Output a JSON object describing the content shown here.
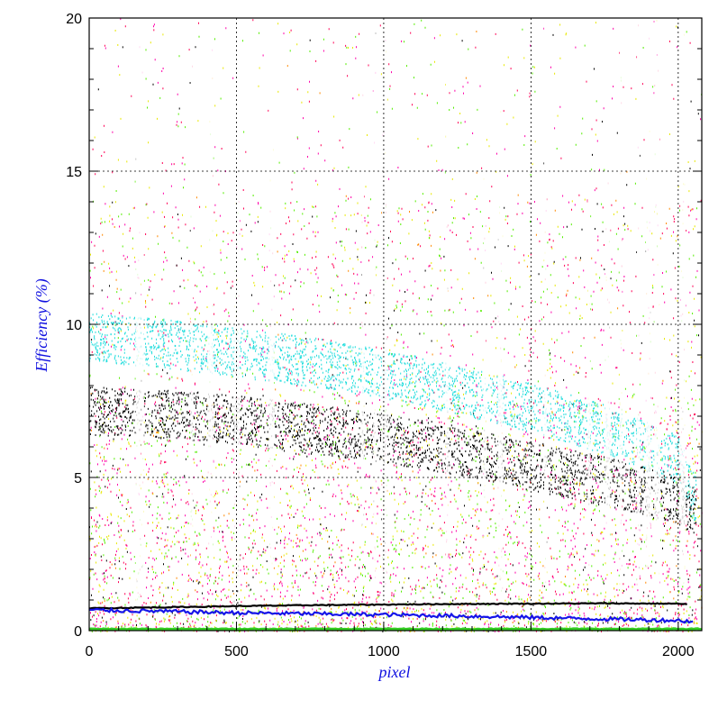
{
  "chart_data": {
    "type": "scatter",
    "title": "",
    "xlabel": "pixel",
    "ylabel": "Efficiency (%)",
    "xlim": [
      0,
      2080
    ],
    "ylim": [
      0,
      20
    ],
    "x_ticks": [
      0,
      500,
      1000,
      1500,
      2000
    ],
    "x_tick_labels": [
      "0",
      "500",
      "1000",
      "1500",
      "2000"
    ],
    "y_ticks": [
      0,
      5,
      10,
      15,
      20
    ],
    "y_tick_labels": [
      "0",
      "5",
      "10",
      "15",
      "20"
    ],
    "grid": true,
    "legend": "none",
    "background_scatter_colors": [
      "#ff00aa",
      "#ff0055",
      "#e8e800",
      "#55ee00",
      "#000000",
      "#22dddd",
      "#2222ee",
      "#ff8800"
    ],
    "series": [
      {
        "color": "#000000",
        "style": "line",
        "x": [
          0,
          250,
          500,
          750,
          1000,
          1250,
          1500,
          1750,
          2000,
          2030
        ],
        "values": [
          0.73,
          0.76,
          0.8,
          0.83,
          0.85,
          0.87,
          0.88,
          0.89,
          0.88,
          0.86
        ]
      },
      {
        "color": "#1515e8",
        "style": "line",
        "x": [
          0,
          250,
          500,
          750,
          1000,
          1250,
          1500,
          1750,
          2000,
          2050
        ],
        "values": [
          0.67,
          0.63,
          0.58,
          0.55,
          0.52,
          0.48,
          0.43,
          0.38,
          0.33,
          0.3
        ]
      },
      {
        "color": "#22dddd",
        "style": "band",
        "x": [
          0,
          250,
          500,
          750,
          1000,
          1250,
          1500,
          1750,
          2000,
          2060
        ],
        "values": [
          9.6,
          9.4,
          9.1,
          8.8,
          8.4,
          7.9,
          7.3,
          6.6,
          5.6,
          4.2
        ]
      },
      {
        "color": "#000000",
        "style": "band",
        "x": [
          0,
          250,
          500,
          750,
          1000,
          1250,
          1500,
          1750,
          2000,
          2060
        ],
        "values": [
          7.2,
          7.1,
          6.9,
          6.6,
          6.3,
          5.9,
          5.4,
          4.9,
          4.3,
          3.8
        ]
      },
      {
        "color": "#33cc22",
        "style": "line",
        "x": [
          0,
          2080
        ],
        "values": [
          0.05,
          0.05
        ]
      }
    ]
  }
}
